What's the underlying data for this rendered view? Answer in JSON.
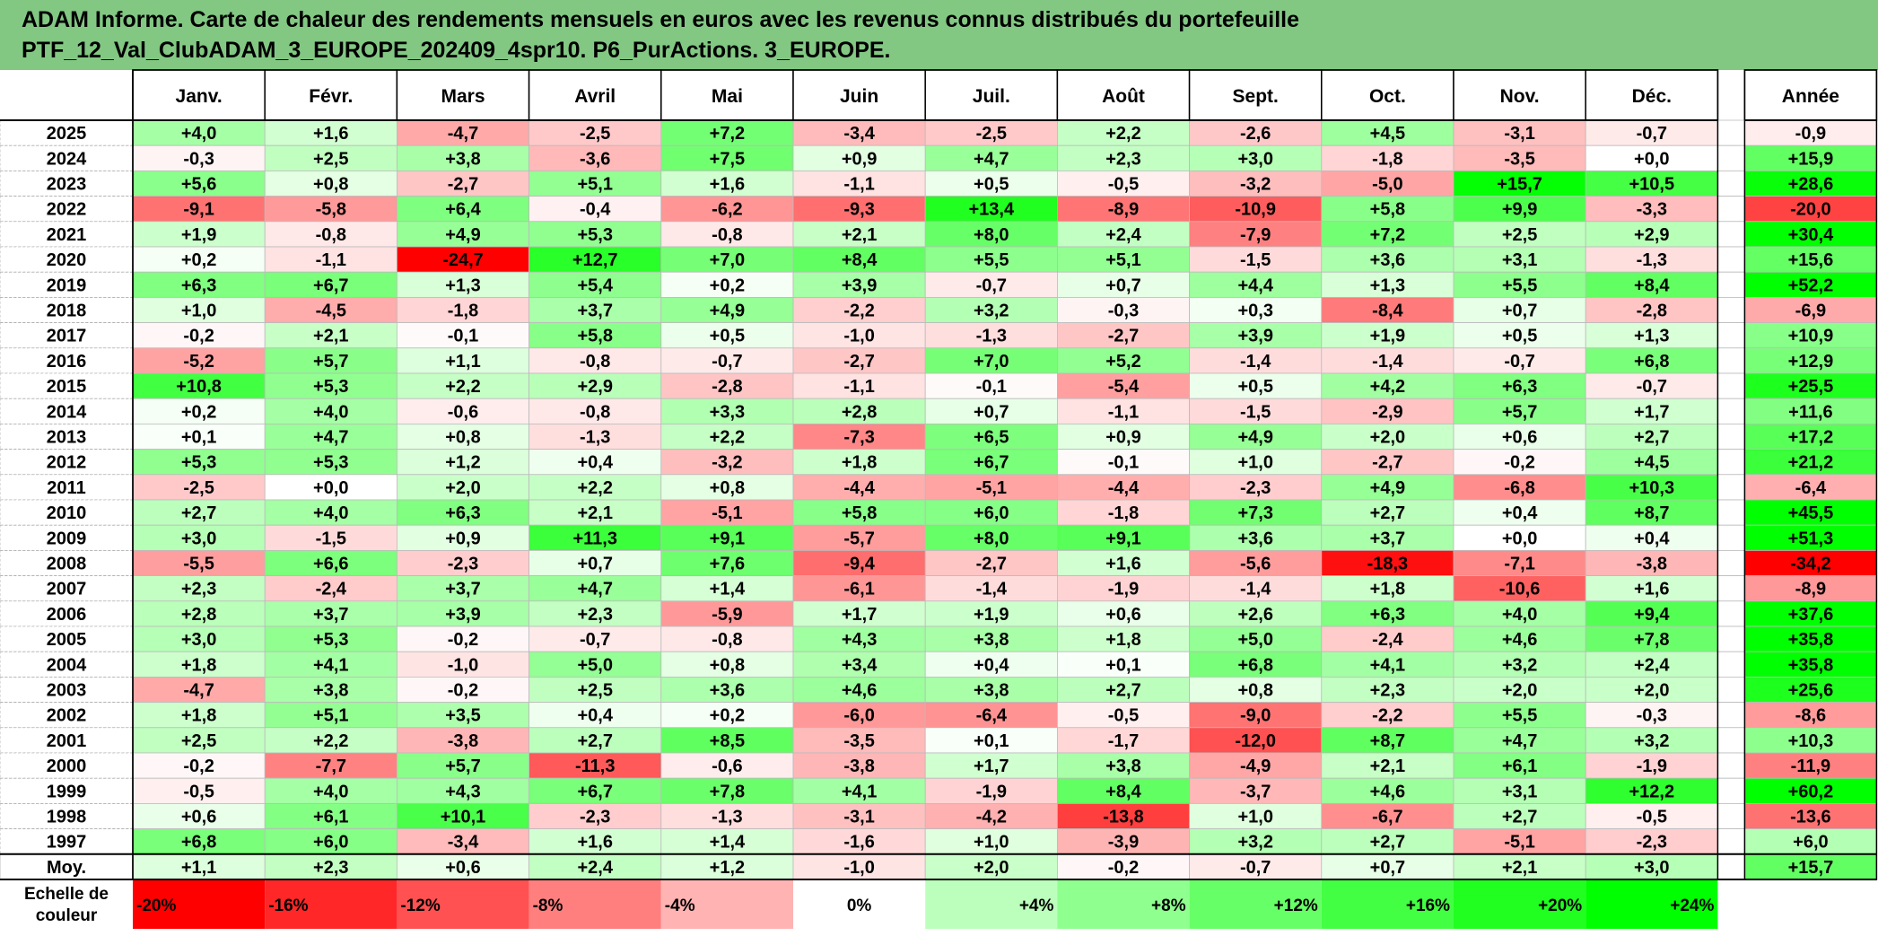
{
  "title": {
    "line1": "ADAM Informe. Carte de chaleur des rendements mensuels en euros avec les revenus connus distribués du portefeuille",
    "line2": "PTF_12_Val_ClubADAM_3_EUROPE_202409_4spr10. P6_PurActions. 3_EUROPE."
  },
  "colors": {
    "banner": "#82c883",
    "negative_max": "#ff0000",
    "positive_max": "#00ff00",
    "neutral": "#ffffff"
  },
  "chart_data": {
    "type": "heatmap",
    "columns": [
      "Janv.",
      "Févr.",
      "Mars",
      "Avril",
      "Mai",
      "Juin",
      "Juil.",
      "Août",
      "Sept.",
      "Oct.",
      "Nov.",
      "Déc."
    ],
    "annual_header": "Année",
    "rows": [
      {
        "year": "2025",
        "months": [
          "+4,0",
          "+1,6",
          "-4,7",
          "-2,5",
          "+7,2",
          "-3,4",
          "-2,5",
          "+2,2",
          "-2,6",
          "+4,5",
          "-3,1",
          "-0,7"
        ],
        "annual": "-0,9"
      },
      {
        "year": "2024",
        "months": [
          "-0,3",
          "+2,5",
          "+3,8",
          "-3,6",
          "+7,5",
          "+0,9",
          "+4,7",
          "+2,3",
          "+3,0",
          "-1,8",
          "-3,5",
          "+0,0"
        ],
        "annual": "+15,9"
      },
      {
        "year": "2023",
        "months": [
          "+5,6",
          "+0,8",
          "-2,7",
          "+5,1",
          "+1,6",
          "-1,1",
          "+0,5",
          "-0,5",
          "-3,2",
          "-5,0",
          "+15,7",
          "+10,5"
        ],
        "annual": "+28,6"
      },
      {
        "year": "2022",
        "months": [
          "-9,1",
          "-5,8",
          "+6,4",
          "-0,4",
          "-6,2",
          "-9,3",
          "+13,4",
          "-8,9",
          "-10,9",
          "+5,8",
          "+9,9",
          "-3,3"
        ],
        "annual": "-20,0"
      },
      {
        "year": "2021",
        "months": [
          "+1,9",
          "-0,8",
          "+4,9",
          "+5,3",
          "-0,8",
          "+2,1",
          "+8,0",
          "+2,4",
          "-7,9",
          "+7,2",
          "+2,5",
          "+2,9"
        ],
        "annual": "+30,4"
      },
      {
        "year": "2020",
        "months": [
          "+0,2",
          "-1,1",
          "-24,7",
          "+12,7",
          "+7,0",
          "+8,4",
          "+5,5",
          "+5,1",
          "-1,5",
          "+3,6",
          "+3,1",
          "-1,3"
        ],
        "annual": "+15,6"
      },
      {
        "year": "2019",
        "months": [
          "+6,3",
          "+6,7",
          "+1,3",
          "+5,4",
          "+0,2",
          "+3,9",
          "-0,7",
          "+0,7",
          "+4,4",
          "+1,3",
          "+5,5",
          "+8,4"
        ],
        "annual": "+52,2"
      },
      {
        "year": "2018",
        "months": [
          "+1,0",
          "-4,5",
          "-1,8",
          "+3,7",
          "+4,9",
          "-2,2",
          "+3,2",
          "-0,3",
          "+0,3",
          "-8,4",
          "+0,7",
          "-2,8"
        ],
        "annual": "-6,9"
      },
      {
        "year": "2017",
        "months": [
          "-0,2",
          "+2,1",
          "-0,1",
          "+5,8",
          "+0,5",
          "-1,0",
          "-1,3",
          "-2,7",
          "+3,9",
          "+1,9",
          "+0,5",
          "+1,3"
        ],
        "annual": "+10,9"
      },
      {
        "year": "2016",
        "months": [
          "-5,2",
          "+5,7",
          "+1,1",
          "-0,8",
          "-0,7",
          "-2,7",
          "+7,0",
          "+5,2",
          "-1,4",
          "-1,4",
          "-0,7",
          "+6,8"
        ],
        "annual": "+12,9"
      },
      {
        "year": "2015",
        "months": [
          "+10,8",
          "+5,3",
          "+2,2",
          "+2,9",
          "-2,8",
          "-1,1",
          "-0,1",
          "-5,4",
          "+0,5",
          "+4,2",
          "+6,3",
          "-0,7"
        ],
        "annual": "+25,5"
      },
      {
        "year": "2014",
        "months": [
          "+0,2",
          "+4,0",
          "-0,6",
          "-0,8",
          "+3,3",
          "+2,8",
          "+0,7",
          "-1,1",
          "-1,5",
          "-2,9",
          "+5,7",
          "+1,7"
        ],
        "annual": "+11,6"
      },
      {
        "year": "2013",
        "months": [
          "+0,1",
          "+4,7",
          "+0,8",
          "-1,3",
          "+2,2",
          "-7,3",
          "+6,5",
          "+0,9",
          "+4,9",
          "+2,0",
          "+0,6",
          "+2,7"
        ],
        "annual": "+17,2"
      },
      {
        "year": "2012",
        "months": [
          "+5,3",
          "+5,3",
          "+1,2",
          "+0,4",
          "-3,2",
          "+1,8",
          "+6,7",
          "-0,1",
          "+1,0",
          "-2,7",
          "-0,2",
          "+4,5"
        ],
        "annual": "+21,2"
      },
      {
        "year": "2011",
        "months": [
          "-2,5",
          "+0,0",
          "+2,0",
          "+2,2",
          "+0,8",
          "-4,4",
          "-5,1",
          "-4,4",
          "-2,3",
          "+4,9",
          "-6,8",
          "+10,3"
        ],
        "annual": "-6,4"
      },
      {
        "year": "2010",
        "months": [
          "+2,7",
          "+4,0",
          "+6,3",
          "+2,1",
          "-5,1",
          "+5,8",
          "+6,0",
          "-1,8",
          "+7,3",
          "+2,7",
          "+0,4",
          "+8,7"
        ],
        "annual": "+45,5"
      },
      {
        "year": "2009",
        "months": [
          "+3,0",
          "-1,5",
          "+0,9",
          "+11,3",
          "+9,1",
          "-5,7",
          "+8,0",
          "+9,1",
          "+3,6",
          "+3,7",
          "+0,0",
          "+0,4"
        ],
        "annual": "+51,3"
      },
      {
        "year": "2008",
        "months": [
          "-5,5",
          "+6,6",
          "-2,3",
          "+0,7",
          "+7,6",
          "-9,4",
          "-2,7",
          "+1,6",
          "-5,6",
          "-18,3",
          "-7,1",
          "-3,8"
        ],
        "annual": "-34,2"
      },
      {
        "year": "2007",
        "months": [
          "+2,3",
          "-2,4",
          "+3,7",
          "+4,7",
          "+1,4",
          "-6,1",
          "-1,4",
          "-1,9",
          "-1,4",
          "+1,8",
          "-10,6",
          "+1,6"
        ],
        "annual": "-8,9"
      },
      {
        "year": "2006",
        "months": [
          "+2,8",
          "+3,7",
          "+3,9",
          "+2,3",
          "-5,9",
          "+1,7",
          "+1,9",
          "+0,6",
          "+2,6",
          "+6,3",
          "+4,0",
          "+9,4"
        ],
        "annual": "+37,6"
      },
      {
        "year": "2005",
        "months": [
          "+3,0",
          "+5,3",
          "-0,2",
          "-0,7",
          "-0,8",
          "+4,3",
          "+3,8",
          "+1,8",
          "+5,0",
          "-2,4",
          "+4,6",
          "+7,8"
        ],
        "annual": "+35,8"
      },
      {
        "year": "2004",
        "months": [
          "+1,8",
          "+4,1",
          "-1,0",
          "+5,0",
          "+0,8",
          "+3,4",
          "+0,4",
          "+0,1",
          "+6,8",
          "+4,1",
          "+3,2",
          "+2,4"
        ],
        "annual": "+35,8"
      },
      {
        "year": "2003",
        "months": [
          "-4,7",
          "+3,8",
          "-0,2",
          "+2,5",
          "+3,6",
          "+4,6",
          "+3,8",
          "+2,7",
          "+0,8",
          "+2,3",
          "+2,0",
          "+2,0"
        ],
        "annual": "+25,6"
      },
      {
        "year": "2002",
        "months": [
          "+1,8",
          "+5,1",
          "+3,5",
          "+0,4",
          "+0,2",
          "-6,0",
          "-6,4",
          "-0,5",
          "-9,0",
          "-2,2",
          "+5,5",
          "-0,3"
        ],
        "annual": "-8,6"
      },
      {
        "year": "2001",
        "months": [
          "+2,5",
          "+2,2",
          "-3,8",
          "+2,7",
          "+8,5",
          "-3,5",
          "+0,1",
          "-1,7",
          "-12,0",
          "+8,7",
          "+4,7",
          "+3,2"
        ],
        "annual": "+10,3"
      },
      {
        "year": "2000",
        "months": [
          "-0,2",
          "-7,7",
          "+5,7",
          "-11,3",
          "-0,6",
          "-3,8",
          "+1,7",
          "+3,8",
          "-4,9",
          "+2,1",
          "+6,1",
          "-1,9"
        ],
        "annual": "-11,9"
      },
      {
        "year": "1999",
        "months": [
          "-0,5",
          "+4,0",
          "+4,3",
          "+6,7",
          "+7,8",
          "+4,1",
          "-1,9",
          "+8,4",
          "-3,7",
          "+4,6",
          "+3,1",
          "+12,2"
        ],
        "annual": "+60,2"
      },
      {
        "year": "1998",
        "months": [
          "+0,6",
          "+6,1",
          "+10,1",
          "-2,3",
          "-1,3",
          "-3,1",
          "-4,2",
          "-13,8",
          "+1,0",
          "-6,7",
          "+2,7",
          "-0,5"
        ],
        "annual": "-13,6"
      },
      {
        "year": "1997",
        "months": [
          "+6,8",
          "+6,0",
          "-3,4",
          "+1,6",
          "+1,4",
          "-1,6",
          "+1,0",
          "-3,9",
          "+3,2",
          "+2,7",
          "-5,1",
          "-2,3"
        ],
        "annual": "+6,0"
      }
    ],
    "average": {
      "label": "Moy.",
      "months": [
        "+1,1",
        "+2,3",
        "+0,6",
        "+2,4",
        "+1,2",
        "-1,0",
        "+2,0",
        "-0,2",
        "-0,7",
        "+0,7",
        "+2,1",
        "+3,0"
      ],
      "annual": "+15,7"
    },
    "scale": {
      "label_line1": "Echelle de",
      "label_line2": "couleur",
      "steps": [
        "-20%",
        "-16%",
        "-12%",
        "-8%",
        "-4%",
        "0%",
        "+4%",
        "+8%",
        "+12%",
        "+16%",
        "+20%",
        "+24%"
      ],
      "values": [
        -20,
        -16,
        -12,
        -8,
        -4,
        0,
        4,
        8,
        12,
        16,
        20,
        24
      ]
    },
    "color_scale": {
      "month_neg_limit": -20,
      "month_pos_limit": 16,
      "annual_neg_limit": -30,
      "annual_pos_limit": 30
    }
  }
}
